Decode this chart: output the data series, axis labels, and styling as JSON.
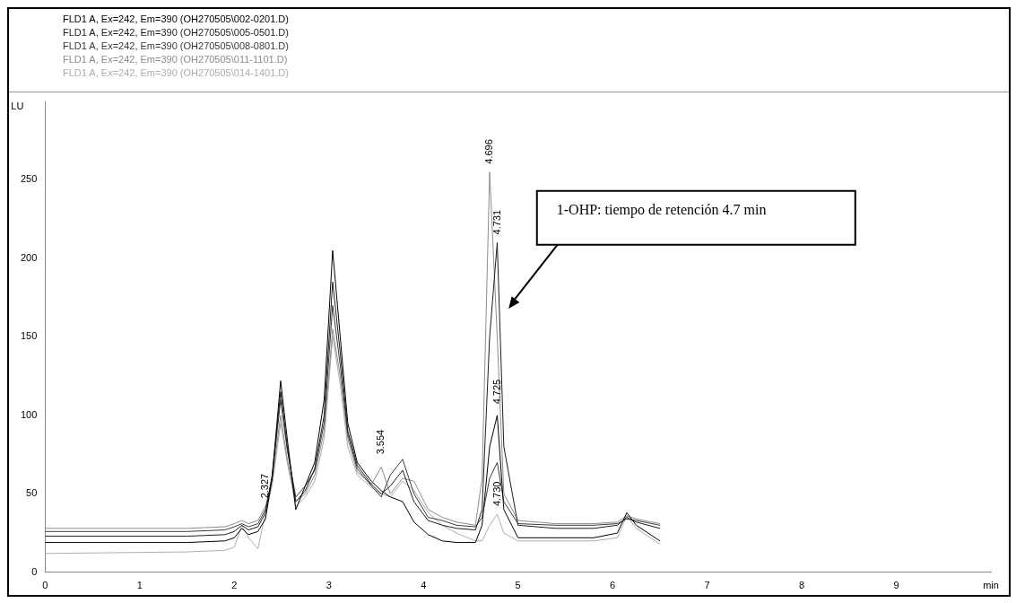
{
  "chart_data": {
    "type": "line",
    "ylabel": "LU",
    "xlim": [
      0,
      10
    ],
    "ylim": [
      0,
      300
    ],
    "xticks": [
      0,
      1,
      2,
      3,
      4,
      5,
      6,
      7,
      8,
      9,
      {
        "value": 10,
        "label": "min"
      }
    ],
    "yticks": [
      0,
      50,
      100,
      150,
      200,
      250
    ],
    "grid": false,
    "legend": "top left",
    "marker": "none",
    "line_style": "solid",
    "x": [
      0,
      1.5,
      1.9,
      2.0,
      2.08,
      2.15,
      2.25,
      2.33,
      2.4,
      2.49,
      2.56,
      2.65,
      2.75,
      2.85,
      2.95,
      3.04,
      3.12,
      3.2,
      3.3,
      3.45,
      3.554,
      3.65,
      3.78,
      3.9,
      4.05,
      4.2,
      4.35,
      4.55,
      4.62,
      4.7,
      4.78,
      4.85,
      5.0,
      5.4,
      5.8,
      6.05,
      6.15,
      6.25,
      6.5
    ],
    "series": [
      {
        "name": "FLD1 A, Ex=242, Em=390 (OH270505\\002-0201.D)",
        "color": "#000000",
        "values": [
          19,
          19,
          20,
          22,
          28,
          24,
          26,
          34,
          60,
          122,
          85,
          40,
          55,
          70,
          110,
          205,
          150,
          95,
          70,
          58,
          52,
          48,
          45,
          32,
          24,
          20,
          19,
          19,
          30,
          80,
          100,
          40,
          22,
          22,
          22,
          25,
          38,
          30,
          20
        ]
      },
      {
        "name": "FLD1 A, Ex=242, Em=390 (OH270505\\005-0501.D)",
        "color": "#1e1e1e",
        "values": [
          23,
          23,
          24,
          26,
          30,
          27,
          29,
          38,
          62,
          115,
          80,
          45,
          52,
          66,
          100,
          185,
          140,
          90,
          68,
          56,
          50,
          55,
          65,
          45,
          33,
          30,
          28,
          27,
          40,
          150,
          210,
          80,
          30,
          28,
          28,
          30,
          35,
          32,
          28
        ]
      },
      {
        "name": "FLD1 A, Ex=242, Em=390 (OH270505\\008-0801.D)",
        "color": "#3a3a3a",
        "values": [
          26,
          26,
          27,
          29,
          31,
          29,
          31,
          40,
          60,
          110,
          78,
          48,
          55,
          65,
          95,
          170,
          132,
          88,
          66,
          55,
          48,
          62,
          72,
          50,
          35,
          33,
          30,
          29,
          35,
          60,
          70,
          45,
          31,
          30,
          30,
          31,
          34,
          33,
          30
        ]
      },
      {
        "name": "FLD1 A, Ex=242, Em=390 (OH270505\\011-1101.D)",
        "color": "#8c8c8c",
        "values": [
          28,
          28,
          29,
          31,
          33,
          31,
          33,
          42,
          58,
          100,
          72,
          45,
          50,
          62,
          90,
          155,
          125,
          85,
          64,
          56,
          67,
          50,
          60,
          58,
          40,
          35,
          32,
          30,
          60,
          255,
          150,
          50,
          33,
          31,
          31,
          32,
          36,
          34,
          31
        ]
      },
      {
        "name": "FLD1 A, Ex=242, Em=390 (OH270505\\014-1401.D)",
        "color": "#adadad",
        "values": [
          12,
          13,
          14,
          16,
          30,
          22,
          15,
          38,
          55,
          95,
          70,
          42,
          48,
          58,
          85,
          150,
          120,
          80,
          62,
          54,
          50,
          48,
          58,
          52,
          38,
          30,
          25,
          20,
          20,
          30,
          37,
          25,
          20,
          20,
          20,
          22,
          36,
          28,
          18
        ]
      }
    ],
    "annotations": [
      "1-OHP: tiempo de retención 4.7 min",
      {
        "text": "4.696",
        "x": 4.7,
        "y": 255
      },
      {
        "text": "4.731",
        "x": 4.78,
        "y": 210
      },
      {
        "text": "4.725",
        "x": 4.78,
        "y": 102
      },
      {
        "text": "4.730",
        "x": 4.78,
        "y": 37
      },
      {
        "text": "3.554",
        "x": 3.554,
        "y": 70
      },
      {
        "text": "2.327",
        "x": 2.327,
        "y": 42
      }
    ]
  }
}
